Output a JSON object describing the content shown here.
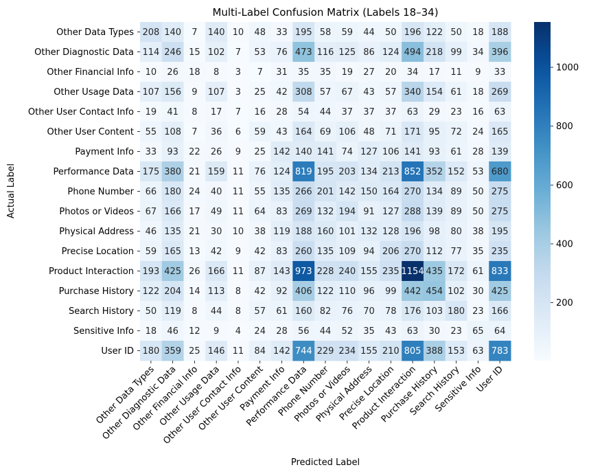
{
  "chart_data": {
    "type": "heatmap",
    "title": "Multi-Label Confusion Matrix (Labels 18–34)",
    "xlabel": "Predicted Label",
    "ylabel": "Actual Label",
    "x_categories": [
      "Other Data Types",
      "Other Diagnostic Data",
      "Other Financial Info",
      "Other Usage Data",
      "Other User Contact Info",
      "Other User Content",
      "Payment Info",
      "Performance Data",
      "Phone Number",
      "Photos or Videos",
      "Physical Address",
      "Precise Location",
      "Product Interaction",
      "Purchase History",
      "Search History",
      "Sensitive Info",
      "User ID"
    ],
    "y_categories": [
      "Other Data Types",
      "Other Diagnostic Data",
      "Other Financial Info",
      "Other Usage Data",
      "Other User Contact Info",
      "Other User Content",
      "Payment Info",
      "Performance Data",
      "Phone Number",
      "Photos or Videos",
      "Physical Address",
      "Precise Location",
      "Product Interaction",
      "Purchase History",
      "Search History",
      "Sensitive Info",
      "User ID"
    ],
    "values": [
      [
        208,
        140,
        7,
        140,
        10,
        48,
        33,
        195,
        58,
        59,
        44,
        50,
        196,
        122,
        50,
        18,
        188
      ],
      [
        114,
        246,
        15,
        102,
        7,
        53,
        76,
        473,
        116,
        125,
        86,
        124,
        494,
        218,
        99,
        34,
        396
      ],
      [
        10,
        26,
        18,
        8,
        3,
        7,
        31,
        35,
        35,
        19,
        27,
        20,
        34,
        17,
        11,
        9,
        33
      ],
      [
        107,
        156,
        9,
        107,
        3,
        25,
        42,
        308,
        57,
        67,
        43,
        57,
        340,
        154,
        61,
        18,
        269
      ],
      [
        19,
        41,
        8,
        17,
        7,
        16,
        28,
        54,
        44,
        37,
        37,
        37,
        63,
        29,
        23,
        16,
        63
      ],
      [
        55,
        108,
        7,
        36,
        6,
        59,
        43,
        164,
        69,
        106,
        48,
        71,
        171,
        95,
        72,
        24,
        165
      ],
      [
        33,
        93,
        22,
        26,
        9,
        25,
        142,
        140,
        141,
        74,
        127,
        106,
        141,
        93,
        61,
        28,
        139
      ],
      [
        175,
        380,
        21,
        159,
        11,
        76,
        124,
        819,
        195,
        203,
        134,
        213,
        852,
        352,
        152,
        53,
        680
      ],
      [
        66,
        180,
        24,
        40,
        11,
        55,
        135,
        266,
        201,
        142,
        150,
        164,
        270,
        134,
        89,
        50,
        275
      ],
      [
        67,
        166,
        17,
        49,
        11,
        64,
        83,
        269,
        132,
        194,
        91,
        127,
        288,
        139,
        89,
        50,
        275
      ],
      [
        46,
        135,
        21,
        30,
        10,
        38,
        119,
        188,
        160,
        101,
        132,
        128,
        196,
        98,
        80,
        38,
        195
      ],
      [
        59,
        165,
        13,
        42,
        9,
        42,
        83,
        260,
        135,
        109,
        94,
        206,
        270,
        112,
        77,
        35,
        235
      ],
      [
        193,
        425,
        26,
        166,
        11,
        87,
        143,
        973,
        228,
        240,
        155,
        235,
        1154,
        435,
        172,
        61,
        833
      ],
      [
        122,
        204,
        14,
        113,
        8,
        42,
        92,
        406,
        122,
        110,
        96,
        99,
        442,
        454,
        102,
        30,
        425
      ],
      [
        50,
        119,
        8,
        44,
        8,
        57,
        61,
        160,
        82,
        76,
        70,
        78,
        176,
        103,
        180,
        23,
        166
      ],
      [
        18,
        46,
        12,
        9,
        4,
        24,
        28,
        56,
        44,
        52,
        35,
        43,
        63,
        30,
        23,
        65,
        64
      ],
      [
        180,
        359,
        25,
        146,
        11,
        84,
        142,
        744,
        229,
        234,
        155,
        210,
        805,
        388,
        153,
        63,
        783
      ]
    ],
    "vmin": 3,
    "vmax": 1154,
    "colormap": "Blues",
    "colorbar_ticks": [
      200,
      400,
      600,
      800,
      1000
    ],
    "grid": false
  }
}
